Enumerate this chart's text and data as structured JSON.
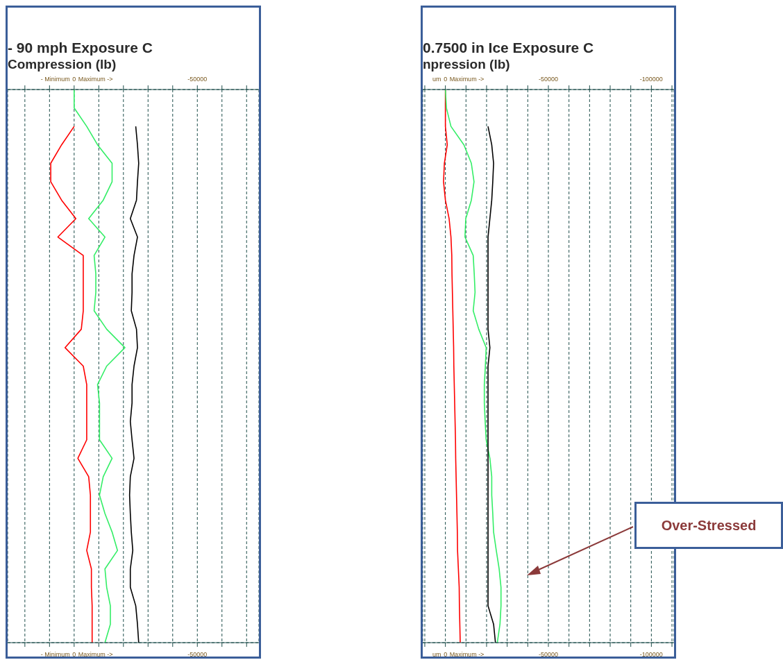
{
  "chart_data": [
    {
      "type": "line",
      "title": "- 90 mph Exposure C",
      "subtitle": "Compression (lb)",
      "categories": [
        null,
        null,
        null,
        null,
        null,
        null,
        null,
        null,
        null,
        null,
        null,
        null,
        null,
        null,
        null,
        null,
        null,
        null,
        null,
        null,
        null,
        null,
        null,
        null,
        null,
        null,
        null,
        null,
        null,
        null,
        null
      ],
      "series": [
        {
          "color": "#ff0000",
          "values": [
            null,
            null,
            0,
            5100,
            9500,
            9500,
            5100,
            -700,
            6600,
            -3700,
            -3700,
            -3700,
            -3700,
            -2900,
            3700,
            -3700,
            -5100,
            -5100,
            -5100,
            -5100,
            -1500,
            -5900,
            -6600,
            -6600,
            -6600,
            -5100,
            -7000,
            -7000,
            -7300,
            -7300,
            -7300
          ]
        },
        {
          "color": "#33ee66",
          "values": [
            0,
            0,
            -5100,
            -9500,
            -15400,
            -15400,
            -11800,
            -5900,
            -12500,
            -8100,
            -8800,
            -8800,
            -8100,
            -13200,
            -20600,
            -13200,
            -9500,
            -10300,
            -10300,
            -10300,
            -15400,
            -11800,
            -10300,
            -12500,
            -15400,
            -17600,
            -12500,
            -13200,
            -14700,
            -14700,
            -12500
          ]
        },
        {
          "color": "#000000",
          "values": [
            null,
            null,
            -25000,
            -25700,
            -26200,
            -25700,
            -25300,
            -22800,
            -25700,
            -24300,
            -23500,
            -23500,
            -23200,
            -25300,
            -25700,
            -24300,
            -23500,
            -23500,
            -22800,
            -23500,
            -24300,
            -22800,
            -22500,
            -22800,
            -23200,
            -23800,
            -22800,
            -22800,
            -25000,
            -25700,
            -26200
          ]
        }
      ],
      "xlim": [
        27000,
        -75000
      ],
      "xticks": [
        {
          "value": 20000,
          "label": null
        },
        {
          "value": 10000,
          "label": null
        },
        {
          "value": 0,
          "label": "0"
        },
        {
          "value": -10000,
          "label": null
        },
        {
          "value": -20000,
          "label": null
        },
        {
          "value": -30000,
          "label": null
        },
        {
          "value": -40000,
          "label": null
        },
        {
          "value": -50000,
          "label": "-50000"
        },
        {
          "value": -60000,
          "label": null
        },
        {
          "value": -70000,
          "label": null
        }
      ],
      "x2lim": [
        27000,
        -75000
      ],
      "x2ticks": [
        {
          "value": 20000,
          "label": null
        },
        {
          "value": 10000,
          "label": null
        },
        {
          "value": 0,
          "label": "0"
        },
        {
          "value": -10000,
          "label": null
        },
        {
          "value": -20000,
          "label": null
        },
        {
          "value": -30000,
          "label": null
        },
        {
          "value": -40000,
          "label": null
        },
        {
          "value": -50000,
          "label": "-50000"
        },
        {
          "value": -60000,
          "label": null
        },
        {
          "value": -70000,
          "label": null
        }
      ],
      "tick_labels": "x",
      "grid": true,
      "orientation": "horizontal",
      "annotations": [
        "- Minimum",
        "Maximum ->"
      ]
    },
    {
      "type": "line",
      "title": "0.7500 in Ice Exposure C",
      "subtitle": "npression (lb)",
      "categories": [
        null,
        null,
        null,
        null,
        null,
        null,
        null,
        null,
        null,
        null,
        null,
        null,
        null,
        null,
        null,
        null,
        null,
        null,
        null,
        null,
        null,
        null,
        null,
        null,
        null,
        null,
        null,
        null,
        null,
        null,
        null
      ],
      "series": [
        {
          "color": "#ff0000",
          "values": [
            0,
            0,
            0,
            -900,
            500,
            900,
            0,
            -1800,
            -2700,
            -3100,
            -3200,
            -3400,
            -3600,
            -3800,
            -4000,
            -4100,
            -4300,
            -4500,
            -4700,
            -4900,
            -5000,
            -5200,
            -5400,
            -5600,
            -5800,
            -5900,
            -6300,
            -6700,
            -6800,
            -7000,
            -7200
          ]
        },
        {
          "color": "#33ee66",
          "values": [
            0,
            -500,
            -2700,
            -9000,
            -12600,
            -13900,
            -12600,
            -9900,
            -9500,
            -13500,
            -14000,
            -14400,
            -13500,
            -16200,
            -19800,
            -19400,
            -18900,
            -18900,
            -19300,
            -19800,
            -21600,
            -22500,
            -22500,
            -23000,
            -23400,
            -24700,
            -26100,
            -27000,
            -27000,
            -26500,
            -25200
          ]
        },
        {
          "color": "#000000",
          "values": [
            null,
            null,
            -20700,
            -22500,
            -23400,
            -23000,
            -22500,
            -21600,
            -20700,
            -20700,
            -20700,
            -20700,
            -20700,
            -20700,
            -21600,
            -20700,
            -20700,
            -20700,
            -20700,
            -20700,
            -20700,
            -20700,
            -20700,
            -20700,
            -20700,
            -20700,
            -20700,
            -20700,
            -20700,
            -23400,
            -24300
          ]
        }
      ],
      "xlim": [
        11000,
        -111000
      ],
      "xticks": [
        {
          "value": 10000,
          "label": null
        },
        {
          "value": 0,
          "label": "0"
        },
        {
          "value": -10000,
          "label": null
        },
        {
          "value": -20000,
          "label": null
        },
        {
          "value": -30000,
          "label": null
        },
        {
          "value": -40000,
          "label": null
        },
        {
          "value": -50000,
          "label": "-50000"
        },
        {
          "value": -60000,
          "label": null
        },
        {
          "value": -70000,
          "label": null
        },
        {
          "value": -80000,
          "label": null
        },
        {
          "value": -90000,
          "label": null
        },
        {
          "value": -100000,
          "label": "-100000"
        },
        {
          "value": -110000,
          "label": null
        }
      ],
      "x2lim": [
        11000,
        -111000
      ],
      "x2ticks": [
        {
          "value": 10000,
          "label": null
        },
        {
          "value": 0,
          "label": "0"
        },
        {
          "value": -10000,
          "label": null
        },
        {
          "value": -20000,
          "label": null
        },
        {
          "value": -30000,
          "label": null
        },
        {
          "value": -40000,
          "label": null
        },
        {
          "value": -50000,
          "label": "-50000"
        },
        {
          "value": -60000,
          "label": null
        },
        {
          "value": -70000,
          "label": null
        },
        {
          "value": -80000,
          "label": null
        },
        {
          "value": -90000,
          "label": null
        },
        {
          "value": -100000,
          "label": "-100000"
        },
        {
          "value": -110000,
          "label": null
        }
      ],
      "tick_labels": "x",
      "grid": true,
      "orientation": "horizontal",
      "annotations": [
        "um",
        "Maximum ->",
        "Over-Stressed"
      ]
    }
  ]
}
